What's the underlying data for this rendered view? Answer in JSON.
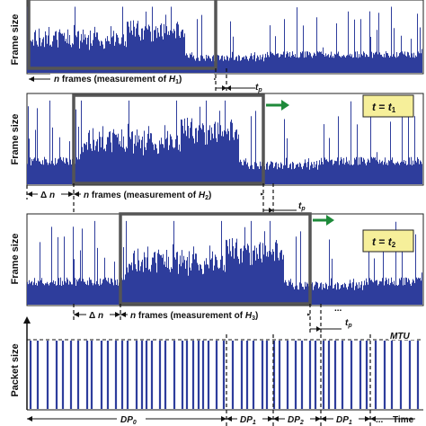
{
  "panels": [
    {
      "ylabel": "Frame size",
      "window_text": [
        "n",
        " frames (measurement of ",
        "H",
        "1",
        ")"
      ],
      "badge": null
    },
    {
      "ylabel": "Frame size",
      "window_text": [
        "n",
        " frames (measurement of ",
        "H",
        "2",
        ")"
      ],
      "delta": [
        "Δ ",
        "n"
      ],
      "badge": [
        "t",
        " = ",
        "t",
        "1"
      ]
    },
    {
      "ylabel": "Frame size",
      "window_text": [
        "n",
        " frames (measurement of ",
        "H",
        "3",
        ")"
      ],
      "delta": [
        "Δ ",
        "n"
      ],
      "badge": [
        "t",
        " = ",
        "t",
        "2"
      ]
    }
  ],
  "tp_label": [
    "t",
    "p"
  ],
  "dots": "...",
  "packet": {
    "ylabel": "Packet size",
    "mtu": "MTU",
    "time": "Time",
    "segments": [
      [
        "DP",
        "0"
      ],
      [
        "DP",
        "1"
      ],
      [
        "DP",
        "2"
      ],
      [
        "DP",
        "1"
      ]
    ],
    "trailing_dots": "..."
  },
  "colors": {
    "trace": "#2e3d9c",
    "window_border": "#555555",
    "badge_fill": "#f6ef9a",
    "arrow": "#1e8a3a"
  }
}
